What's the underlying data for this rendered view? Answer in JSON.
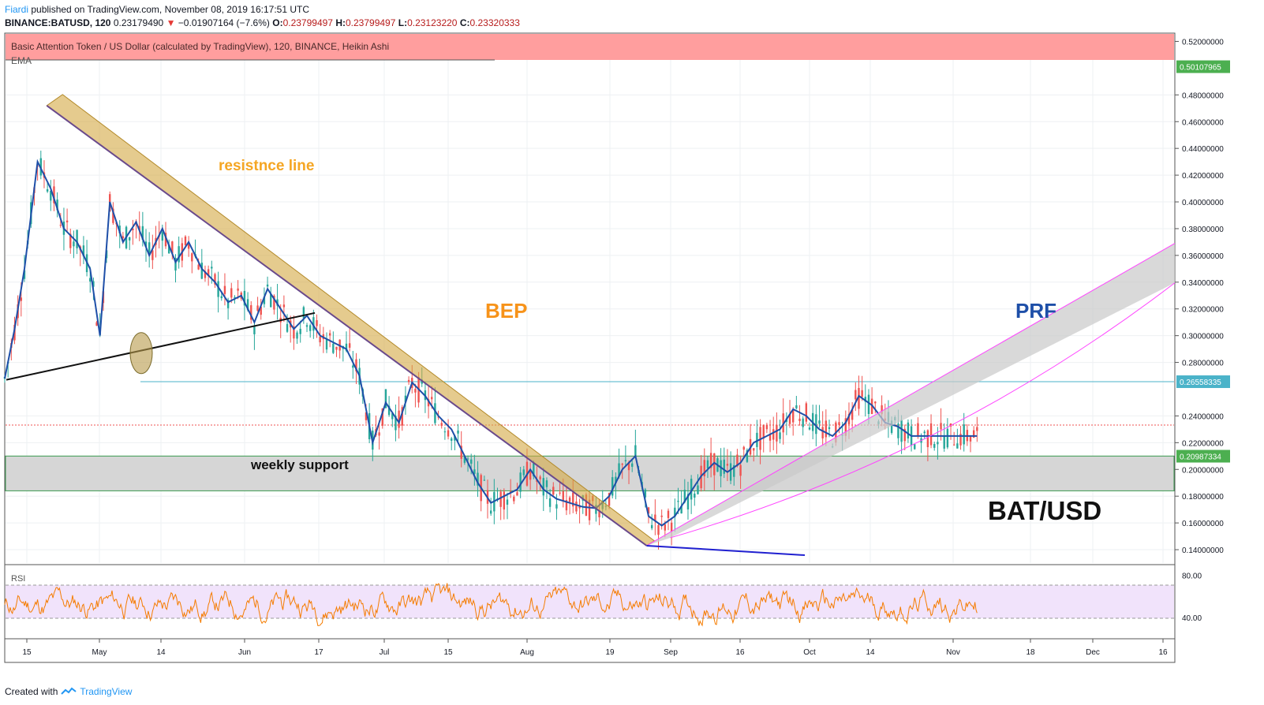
{
  "header": {
    "author": "Fiardi",
    "published": "published on TradingView.com, November 08, 2019 16:17:51 UTC",
    "symbol": "BINANCE:BATUSD, 120",
    "last": "0.23179490",
    "change_arrow": "▼",
    "change": "−0.01907164 (−7.6%)",
    "o_label": "O:",
    "o_value": "0.23799497",
    "h_label": "H:",
    "h_value": "0.23799497",
    "l_label": "L:",
    "l_value": "0.23123220",
    "c_label": "C:",
    "c_value": "0.23320333"
  },
  "banner": {
    "text": "Basic Attention Token / US Dollar (calculated by TradingView), 120, BINANCE, Heikin Ashi",
    "color": "#ff9e9e"
  },
  "ema_label": "EMA",
  "rsi_label": "RSI",
  "footer": {
    "created": "Created with",
    "brand": "TradingView"
  },
  "annotations": {
    "resistance": "resistnce line",
    "bep": "BEP",
    "prf": "PRF",
    "weekly_support": "weekly support",
    "pair": "BAT/USD"
  },
  "colors": {
    "up": "#26a69a",
    "down": "#ef5350",
    "ema": "#1e4fa8",
    "rsi": "#f57c00",
    "channel": "#d4a843",
    "prf": "#1e4fa8",
    "bep": "#f7931a",
    "resistance_text": "#f5a623",
    "pink": "#ff44ff"
  },
  "chart_data": {
    "type": "line",
    "title": "Basic Attention Token / US Dollar (calculated by TradingView), 120, BINANCE, Heikin Ashi",
    "x_tick_labels": [
      "15",
      "May",
      "14",
      "Jun",
      "17",
      "Jul",
      "15",
      "Aug",
      "19",
      "Sep",
      "16",
      "Oct",
      "14",
      "Nov",
      "18",
      "Dec",
      "16"
    ],
    "y_tick_labels": [
      "0.52000000",
      "0.48000000",
      "0.46000000",
      "0.44000000",
      "0.42000000",
      "0.40000000",
      "0.38000000",
      "0.36000000",
      "0.34000000",
      "0.32000000",
      "0.30000000",
      "0.28000000",
      "0.24000000",
      "0.22000000",
      "0.20000000",
      "0.18000000",
      "0.16000000",
      "0.14000000"
    ],
    "ylim": [
      0.13,
      0.525
    ],
    "price_markers": [
      {
        "label": "0.50107965",
        "value": 0.50108,
        "color": "#4caf50"
      },
      {
        "label": "0.26558335",
        "value": 0.26558,
        "color": "#4bb3c9"
      },
      {
        "label": "0.20987334",
        "value": 0.20987,
        "color": "#4caf50"
      }
    ],
    "current_price": 0.2332,
    "series": [
      {
        "name": "EMA",
        "x": [
          0,
          3,
          6,
          10,
          14,
          18,
          22,
          26,
          29,
          32,
          36,
          40,
          44,
          48,
          52,
          56,
          60,
          64,
          68,
          72,
          76,
          80,
          84,
          88,
          92,
          96,
          100,
          104,
          108,
          112,
          116,
          120,
          124,
          128,
          132,
          136,
          140,
          144,
          148,
          152,
          156,
          160,
          164,
          168,
          172,
          176,
          180,
          184,
          188,
          192,
          196,
          200,
          204,
          208,
          212,
          216,
          220,
          224,
          228,
          232,
          236,
          240,
          244,
          248,
          252,
          256,
          260,
          264,
          268,
          272,
          276,
          280,
          284,
          288,
          292,
          296,
          300
        ],
        "values": [
          0.268,
          0.305,
          0.35,
          0.43,
          0.41,
          0.38,
          0.37,
          0.35,
          0.3,
          0.4,
          0.37,
          0.385,
          0.36,
          0.38,
          0.355,
          0.37,
          0.35,
          0.34,
          0.325,
          0.33,
          0.31,
          0.335,
          0.32,
          0.305,
          0.315,
          0.3,
          0.295,
          0.29,
          0.27,
          0.22,
          0.25,
          0.235,
          0.265,
          0.255,
          0.24,
          0.23,
          0.21,
          0.19,
          0.175,
          0.18,
          0.185,
          0.2,
          0.185,
          0.178,
          0.175,
          0.172,
          0.171,
          0.18,
          0.2,
          0.21,
          0.165,
          0.158,
          0.165,
          0.18,
          0.195,
          0.205,
          0.198,
          0.205,
          0.22,
          0.225,
          0.23,
          0.245,
          0.24,
          0.23,
          0.225,
          0.235,
          0.255,
          0.248,
          0.235,
          0.232,
          0.225,
          0.225,
          0.225,
          0.225,
          0.225,
          0.225,
          0.225
        ]
      },
      {
        "name": "RSI",
        "ylim": [
          20,
          90
        ],
        "reference_levels": [
          70,
          30
        ],
        "tick_labels": [
          "80.00",
          "40.00"
        ]
      }
    ],
    "drawings": [
      {
        "name": "resistance-channel",
        "from": [
          8,
          0.472
        ],
        "to": [
          193,
          0.143
        ]
      },
      {
        "name": "support-trendline",
        "from": [
          0,
          0.267
        ],
        "to": [
          86,
          0.317
        ]
      },
      {
        "name": "weekly-support-zone",
        "low": 0.184,
        "high": 0.21
      },
      {
        "name": "prf-channel",
        "from": [
          193,
          0.143
        ],
        "to": [
          296,
          0.369
        ]
      },
      {
        "name": "horizontal-line",
        "value": 0.2656
      }
    ]
  }
}
